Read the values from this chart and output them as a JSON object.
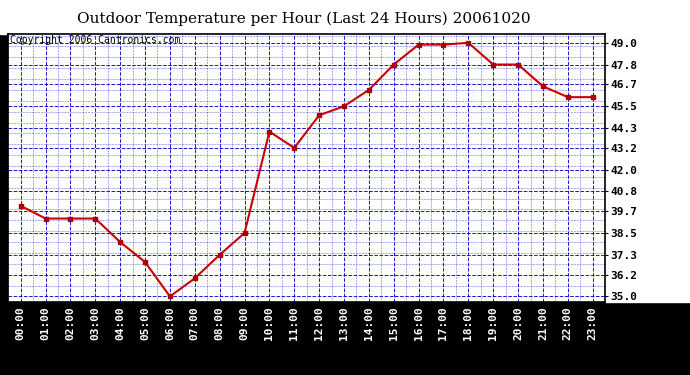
{
  "title": "Outdoor Temperature per Hour (Last 24 Hours) 20061020",
  "copyright": "Copyright 2006 Cantronics.com",
  "hours": [
    "00:00",
    "01:00",
    "02:00",
    "03:00",
    "04:00",
    "05:00",
    "06:00",
    "07:00",
    "08:00",
    "09:00",
    "10:00",
    "11:00",
    "12:00",
    "13:00",
    "14:00",
    "15:00",
    "16:00",
    "17:00",
    "18:00",
    "19:00",
    "20:00",
    "21:00",
    "22:00",
    "23:00"
  ],
  "temps": [
    40.0,
    39.3,
    39.3,
    39.3,
    38.0,
    36.9,
    35.0,
    36.0,
    37.3,
    38.5,
    44.1,
    43.2,
    45.0,
    45.5,
    46.4,
    47.8,
    48.9,
    48.9,
    49.0,
    47.8,
    47.8,
    46.6,
    46.0,
    46.0
  ],
  "yticks": [
    35.0,
    36.2,
    37.3,
    38.5,
    39.7,
    40.8,
    42.0,
    43.2,
    44.3,
    45.5,
    46.7,
    47.8,
    49.0
  ],
  "ylim": [
    34.7,
    49.5
  ],
  "line_color": "#cc0000",
  "marker_color": "#aa0000",
  "bg_color": "#000000",
  "plot_bg_color": "#ffffff",
  "grid_color": "#0000cc",
  "title_color": "#000000",
  "title_bg": "#ffffff",
  "border_color": "#000000",
  "axis_label_color": "#000000",
  "copyright_color": "#000000",
  "title_fontsize": 11,
  "tick_fontsize": 8,
  "copyright_fontsize": 7
}
